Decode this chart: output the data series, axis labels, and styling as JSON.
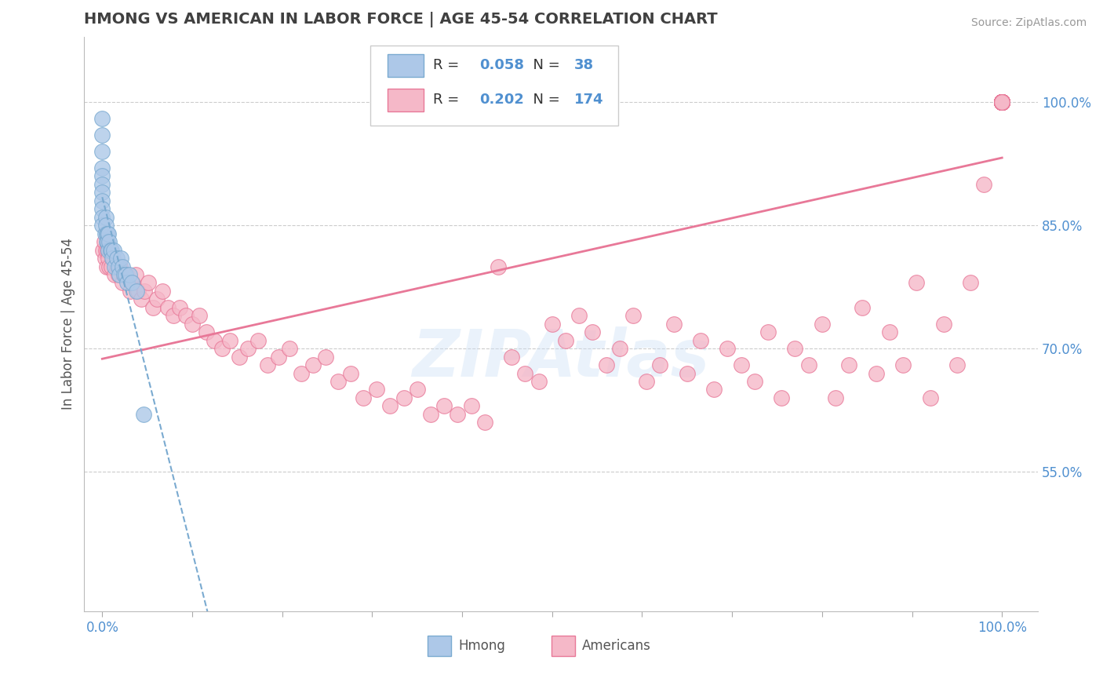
{
  "title": "HMONG VS AMERICAN IN LABOR FORCE | AGE 45-54 CORRELATION CHART",
  "ylabel": "In Labor Force | Age 45-54",
  "source_text": "Source: ZipAtlas.com",
  "watermark": "ZIPAtlas",
  "legend_hmong_R": "0.058",
  "legend_hmong_N": "38",
  "legend_american_R": "0.202",
  "legend_american_N": "174",
  "hmong_color": "#adc8e8",
  "american_color": "#f5b8c8",
  "hmong_edge_color": "#7aaad0",
  "american_edge_color": "#e87898",
  "trend_american_color": "#e87898",
  "trend_hmong_color": "#7aaad0",
  "background_color": "#ffffff",
  "grid_color": "#cccccc",
  "title_color": "#404040",
  "axis_label_color": "#5090d0",
  "r_n_color": "#5090d0",
  "xlim": [
    -0.02,
    1.04
  ],
  "ylim": [
    0.38,
    1.08
  ],
  "yticks": [
    0.55,
    0.7,
    0.85,
    1.0
  ],
  "ytick_labels": [
    "55.0%",
    "70.0%",
    "85.0%",
    "100.0%"
  ],
  "hmong_x": [
    0.0,
    0.0,
    0.0,
    0.0,
    0.0,
    0.0,
    0.0,
    0.0,
    0.0,
    0.0,
    0.0,
    0.003,
    0.004,
    0.004,
    0.005,
    0.005,
    0.006,
    0.006,
    0.007,
    0.007,
    0.008,
    0.009,
    0.01,
    0.011,
    0.013,
    0.014,
    0.016,
    0.018,
    0.019,
    0.021,
    0.022,
    0.024,
    0.026,
    0.028,
    0.03,
    0.033,
    0.038,
    0.046
  ],
  "hmong_y": [
    0.98,
    0.96,
    0.94,
    0.92,
    0.91,
    0.9,
    0.89,
    0.88,
    0.87,
    0.86,
    0.85,
    0.84,
    0.86,
    0.85,
    0.84,
    0.83,
    0.84,
    0.83,
    0.84,
    0.82,
    0.83,
    0.82,
    0.82,
    0.81,
    0.82,
    0.8,
    0.81,
    0.8,
    0.79,
    0.81,
    0.8,
    0.79,
    0.79,
    0.78,
    0.79,
    0.78,
    0.77,
    0.62
  ],
  "american_x": [
    0.001,
    0.002,
    0.003,
    0.004,
    0.005,
    0.006,
    0.007,
    0.008,
    0.009,
    0.01,
    0.012,
    0.014,
    0.016,
    0.018,
    0.02,
    0.022,
    0.025,
    0.028,
    0.031,
    0.034,
    0.037,
    0.04,
    0.043,
    0.047,
    0.051,
    0.056,
    0.061,
    0.067,
    0.073,
    0.079,
    0.086,
    0.093,
    0.1,
    0.108,
    0.116,
    0.124,
    0.133,
    0.142,
    0.152,
    0.162,
    0.173,
    0.184,
    0.196,
    0.208,
    0.221,
    0.234,
    0.248,
    0.262,
    0.276,
    0.29,
    0.305,
    0.32,
    0.335,
    0.35,
    0.365,
    0.38,
    0.395,
    0.41,
    0.425,
    0.44,
    0.455,
    0.47,
    0.485,
    0.5,
    0.515,
    0.53,
    0.545,
    0.56,
    0.575,
    0.59,
    0.605,
    0.62,
    0.635,
    0.65,
    0.665,
    0.68,
    0.695,
    0.71,
    0.725,
    0.74,
    0.755,
    0.77,
    0.785,
    0.8,
    0.815,
    0.83,
    0.845,
    0.86,
    0.875,
    0.89,
    0.905,
    0.92,
    0.935,
    0.95,
    0.965,
    0.98,
    1.0,
    1.0,
    1.0,
    1.0,
    1.0,
    1.0,
    1.0,
    1.0,
    1.0,
    1.0,
    1.0,
    1.0,
    1.0,
    1.0,
    1.0,
    1.0,
    1.0,
    1.0,
    1.0,
    1.0,
    1.0,
    1.0,
    1.0,
    1.0,
    1.0,
    1.0,
    1.0,
    1.0,
    1.0,
    1.0,
    1.0,
    1.0,
    1.0,
    1.0,
    1.0,
    1.0,
    1.0,
    1.0,
    1.0,
    1.0,
    1.0,
    1.0,
    1.0,
    1.0,
    1.0,
    1.0,
    1.0,
    1.0,
    1.0,
    1.0,
    1.0,
    1.0,
    1.0,
    1.0,
    1.0,
    1.0,
    1.0,
    1.0,
    1.0,
    1.0,
    1.0,
    1.0,
    1.0,
    1.0,
    1.0,
    1.0,
    1.0,
    1.0,
    1.0,
    1.0,
    1.0,
    1.0
  ],
  "american_y": [
    0.82,
    0.83,
    0.81,
    0.82,
    0.8,
    0.82,
    0.81,
    0.8,
    0.82,
    0.8,
    0.81,
    0.79,
    0.8,
    0.79,
    0.8,
    0.78,
    0.79,
    0.79,
    0.77,
    0.78,
    0.79,
    0.77,
    0.76,
    0.77,
    0.78,
    0.75,
    0.76,
    0.77,
    0.75,
    0.74,
    0.75,
    0.74,
    0.73,
    0.74,
    0.72,
    0.71,
    0.7,
    0.71,
    0.69,
    0.7,
    0.71,
    0.68,
    0.69,
    0.7,
    0.67,
    0.68,
    0.69,
    0.66,
    0.67,
    0.64,
    0.65,
    0.63,
    0.64,
    0.65,
    0.62,
    0.63,
    0.62,
    0.63,
    0.61,
    0.8,
    0.69,
    0.67,
    0.66,
    0.73,
    0.71,
    0.74,
    0.72,
    0.68,
    0.7,
    0.74,
    0.66,
    0.68,
    0.73,
    0.67,
    0.71,
    0.65,
    0.7,
    0.68,
    0.66,
    0.72,
    0.64,
    0.7,
    0.68,
    0.73,
    0.64,
    0.68,
    0.75,
    0.67,
    0.72,
    0.68,
    0.78,
    0.64,
    0.73,
    0.68,
    0.78,
    0.9,
    1.0,
    1.0,
    1.0,
    1.0,
    1.0,
    1.0,
    1.0,
    1.0,
    1.0,
    1.0,
    1.0,
    1.0,
    1.0,
    1.0,
    1.0,
    1.0,
    1.0,
    1.0,
    1.0,
    1.0,
    1.0,
    1.0,
    1.0,
    1.0,
    1.0,
    1.0,
    1.0,
    1.0,
    1.0,
    1.0,
    1.0,
    1.0,
    1.0,
    1.0,
    1.0,
    1.0,
    1.0,
    1.0,
    1.0,
    1.0,
    1.0,
    1.0,
    1.0,
    1.0,
    1.0,
    1.0,
    1.0,
    1.0,
    1.0,
    1.0,
    1.0,
    1.0,
    1.0,
    1.0,
    1.0,
    1.0,
    1.0,
    1.0,
    1.0,
    1.0,
    1.0,
    1.0,
    1.0,
    1.0,
    1.0,
    1.0,
    1.0,
    1.0,
    1.0,
    1.0,
    1.0,
    1.0
  ]
}
